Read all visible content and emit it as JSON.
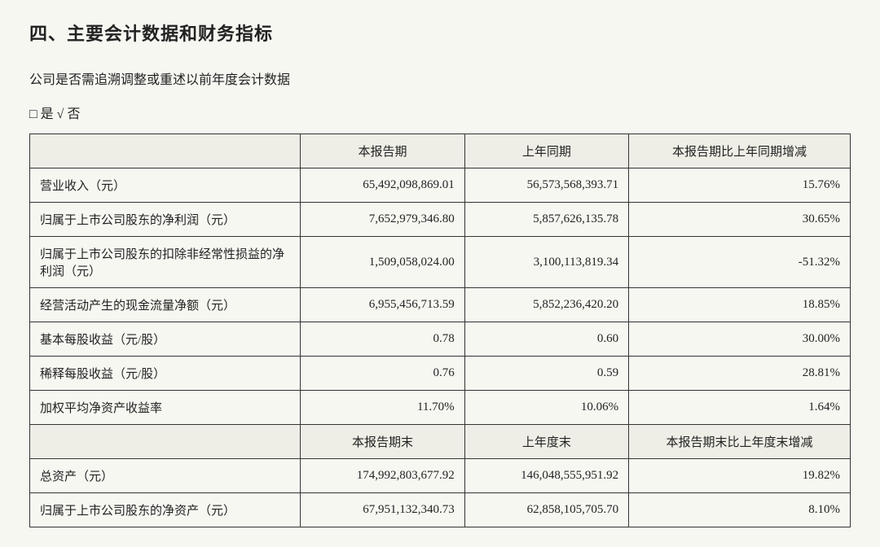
{
  "heading": "四、主要会计数据和财务指标",
  "subtitle": "公司是否需追溯调整或重述以前年度会计数据",
  "checkbox_line": "□ 是  √ 否",
  "table1": {
    "headers": [
      "",
      "本报告期",
      "上年同期",
      "本报告期比上年同期增减"
    ],
    "rows": [
      {
        "label": "营业收入（元）",
        "v1": "65,492,098,869.01",
        "v2": "56,573,568,393.71",
        "v3": "15.76%"
      },
      {
        "label": "归属于上市公司股东的净利润（元）",
        "v1": "7,652,979,346.80",
        "v2": "5,857,626,135.78",
        "v3": "30.65%"
      },
      {
        "label": "归属于上市公司股东的扣除非经常性损益的净利润（元）",
        "v1": "1,509,058,024.00",
        "v2": "3,100,113,819.34",
        "v3": "-51.32%"
      },
      {
        "label": "经营活动产生的现金流量净额（元）",
        "v1": "6,955,456,713.59",
        "v2": "5,852,236,420.20",
        "v3": "18.85%"
      },
      {
        "label": "基本每股收益（元/股）",
        "v1": "0.78",
        "v2": "0.60",
        "v3": "30.00%"
      },
      {
        "label": "稀释每股收益（元/股）",
        "v1": "0.76",
        "v2": "0.59",
        "v3": "28.81%"
      },
      {
        "label": "加权平均净资产收益率",
        "v1": "11.70%",
        "v2": "10.06%",
        "v3": "1.64%"
      }
    ]
  },
  "table2": {
    "headers": [
      "",
      "本报告期末",
      "上年度末",
      "本报告期末比上年度末增减"
    ],
    "rows": [
      {
        "label": "总资产（元）",
        "v1": "174,992,803,677.92",
        "v2": "146,048,555,951.92",
        "v3": "19.82%"
      },
      {
        "label": "归属于上市公司股东的净资产（元）",
        "v1": "67,951,132,340.73",
        "v2": "62,858,105,705.70",
        "v3": "8.10%"
      }
    ]
  }
}
